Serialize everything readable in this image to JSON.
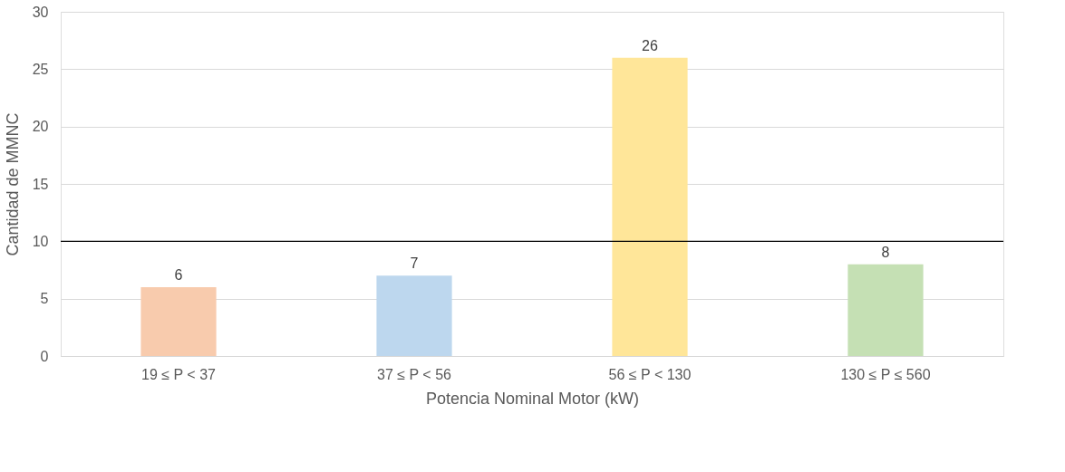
{
  "chart_data": {
    "type": "bar",
    "xlabel": "Potencia Nominal Motor (kW)",
    "ylabel": "Cantidad de MMNC",
    "categories": [
      "19 ≤ P < 37",
      "37 ≤ P < 56",
      "56 ≤ P  < 130",
      "130 ≤ P ≤ 560"
    ],
    "values": [
      6,
      7,
      26,
      8
    ],
    "colors": [
      "#f8cbad",
      "#bdd7ee",
      "#ffe699",
      "#c5e0b4"
    ],
    "ylim": [
      0,
      30
    ],
    "yticks": [
      0,
      5,
      10,
      15,
      20,
      25,
      30
    ],
    "grid": "y",
    "data_labels": true,
    "ref_lines": [
      {
        "axis": "y",
        "value": 10,
        "color": "#000000"
      }
    ]
  }
}
